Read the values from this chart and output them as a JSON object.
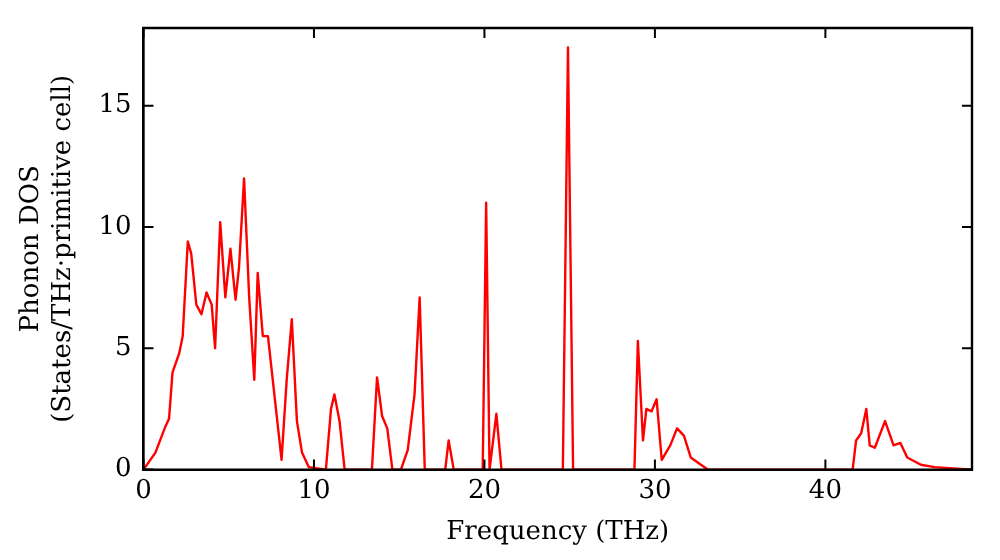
{
  "chart_data": {
    "type": "line",
    "xlabel": "Frequency (THz)",
    "ylabel": "Phonon DOS\n(States/THz·primitive cell)",
    "xlim": [
      0,
      48.6
    ],
    "ylim": [
      0,
      18.2
    ],
    "xticks": [
      0,
      10,
      20,
      30,
      40
    ],
    "yticks": [
      0,
      5,
      10,
      15
    ],
    "grid": false,
    "legend": false,
    "marker": "none",
    "line_style": "solid",
    "series": [
      {
        "color": "#ff0000",
        "x": [
          0,
          0.7,
          1.3,
          1.5,
          1.7,
          2.1,
          2.3,
          2.6,
          2.8,
          3.1,
          3.4,
          3.7,
          4.0,
          4.2,
          4.5,
          4.8,
          5.1,
          5.4,
          5.6,
          5.9,
          6.2,
          6.5,
          6.7,
          7.0,
          7.3,
          8.1,
          8.4,
          8.7,
          9.0,
          9.3,
          9.7,
          10.7,
          11.0,
          11.2,
          11.5,
          11.8,
          13.4,
          13.7,
          14.0,
          14.3,
          14.6,
          15.1,
          15.5,
          15.9,
          16.2,
          16.5,
          17.7,
          17.9,
          18.2,
          19.9,
          20.1,
          20.3,
          20.7,
          21.0,
          24.6,
          24.9,
          25.2,
          28.8,
          29.0,
          29.3,
          29.5,
          29.8,
          30.1,
          30.4,
          30.9,
          31.3,
          31.7,
          32.1,
          32.7,
          33.1,
          41.6,
          41.8,
          42.1,
          42.4,
          42.6,
          42.9,
          43.5,
          44.0,
          44.4,
          44.8,
          45.6,
          46.4,
          48.6
        ],
        "values": [
          0,
          0.7,
          1.8,
          2.1,
          4.0,
          4.8,
          5.5,
          9.4,
          8.9,
          6.8,
          6.4,
          7.3,
          6.8,
          5.0,
          10.2,
          7.1,
          9.1,
          7.0,
          8.3,
          12.0,
          7.1,
          3.7,
          8.1,
          5.5,
          5.5,
          0.4,
          3.7,
          6.2,
          2.0,
          0.7,
          0.1,
          0,
          2.5,
          3.1,
          2.0,
          0,
          0,
          3.8,
          2.2,
          1.7,
          0,
          0,
          0.8,
          3.1,
          7.1,
          0,
          0,
          1.2,
          0,
          0,
          11.0,
          0,
          2.3,
          0,
          0,
          17.4,
          0,
          0,
          5.3,
          1.2,
          2.5,
          2.4,
          2.9,
          0.4,
          1.0,
          1.7,
          1.4,
          0.5,
          0.2,
          0,
          0,
          1.2,
          1.5,
          2.5,
          1.0,
          0.9,
          2.0,
          1.0,
          1.1,
          0.5,
          0.2,
          0.1,
          0
        ]
      }
    ]
  }
}
